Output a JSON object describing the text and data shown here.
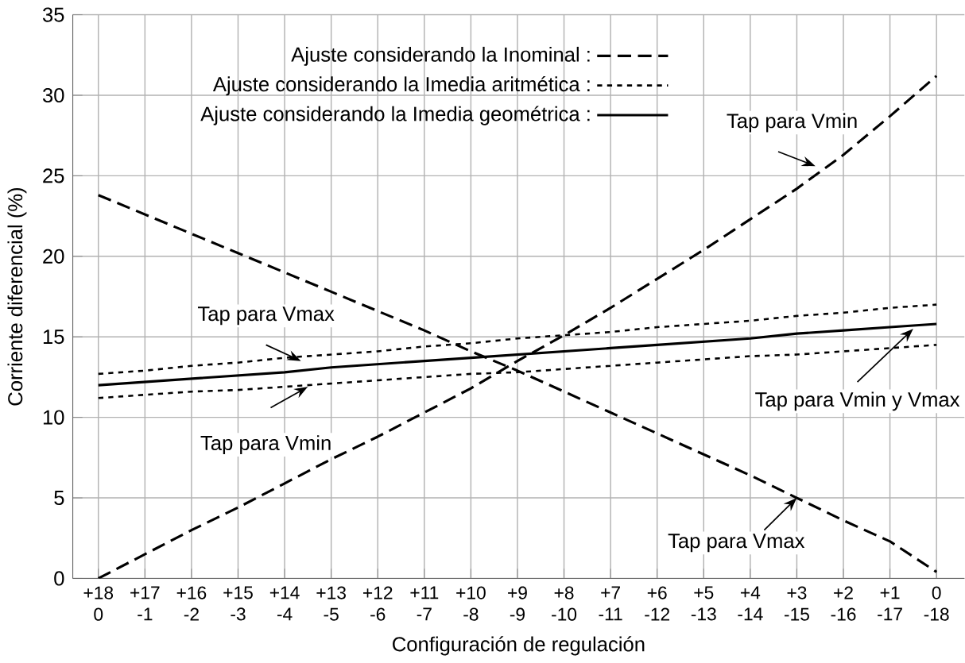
{
  "chart_data": {
    "type": "line",
    "xlabel": "Configuración de regulación",
    "ylabel": "Corriente diferencial (%)",
    "categories": [
      "+18\n0",
      "+17\n-1",
      "+16\n-2",
      "+15\n-3",
      "+14\n-4",
      "+13\n-5",
      "+12\n-6",
      "+11\n-7",
      "+10\n-8",
      "+9\n-9",
      "+8\n-10",
      "+7\n-11",
      "+6\n-12",
      "+5\n-13",
      "+4\n-14",
      "+3\n-15",
      "+2\n-16",
      "+1\n-17",
      "0\n-18"
    ],
    "series": [
      {
        "name": "Ajuste considerando la Inominal :",
        "color": "#000000",
        "line_style": "dashed",
        "values": [
          0,
          1.5,
          3.0,
          4.4,
          5.9,
          7.4,
          8.8,
          10.3,
          11.8,
          13.5,
          15.1,
          16.8,
          18.6,
          20.4,
          22.3,
          24.2,
          26.3,
          28.7,
          31.2
        ]
      },
      {
        "color": "#000000",
        "line_style": "dashed",
        "values": [
          23.8,
          22.6,
          21.4,
          20.2,
          19.0,
          17.8,
          16.6,
          15.4,
          14.1,
          12.9,
          11.6,
          10.3,
          9.0,
          7.7,
          6.4,
          5.0,
          3.6,
          2.3,
          0.4
        ]
      },
      {
        "name": "Ajuste considerando la Imedia aritmética :",
        "color": "#000000",
        "line_style": "dotted",
        "values": [
          12.7,
          12.9,
          13.2,
          13.4,
          13.7,
          13.9,
          14.1,
          14.4,
          14.6,
          14.9,
          15.1,
          15.3,
          15.6,
          15.8,
          16.0,
          16.3,
          16.5,
          16.8,
          17.0
        ]
      },
      {
        "color": "#000000",
        "line_style": "dotted",
        "values": [
          11.2,
          11.4,
          11.6,
          11.7,
          11.9,
          12.1,
          12.3,
          12.5,
          12.7,
          12.8,
          13.0,
          13.2,
          13.4,
          13.6,
          13.8,
          13.9,
          14.1,
          14.3,
          14.5
        ]
      },
      {
        "name": "Ajuste considerando la Imedia geométrica :",
        "color": "#000000",
        "line_style": "solid",
        "values": [
          12.0,
          12.2,
          12.4,
          12.6,
          12.8,
          13.1,
          13.3,
          13.5,
          13.7,
          13.9,
          14.1,
          14.3,
          14.5,
          14.7,
          14.9,
          15.2,
          15.4,
          15.6,
          15.8
        ]
      }
    ],
    "ylim": [
      0,
      35
    ],
    "yticks": [
      0,
      5,
      10,
      15,
      20,
      25,
      30,
      35
    ],
    "grid": true,
    "legend": "top",
    "marker": "none",
    "annotations": [
      "Tap para Vmin",
      {
        "text": "Tap para Vmax",
        "y": 13.5
      },
      {
        "text": "Tap para Vmin",
        "y": 11.9
      },
      "Tap para Vmin y Vmax",
      {
        "text": "Tap para Vmax",
        "x": "+3\n-15",
        "y": 5.0
      }
    ]
  }
}
